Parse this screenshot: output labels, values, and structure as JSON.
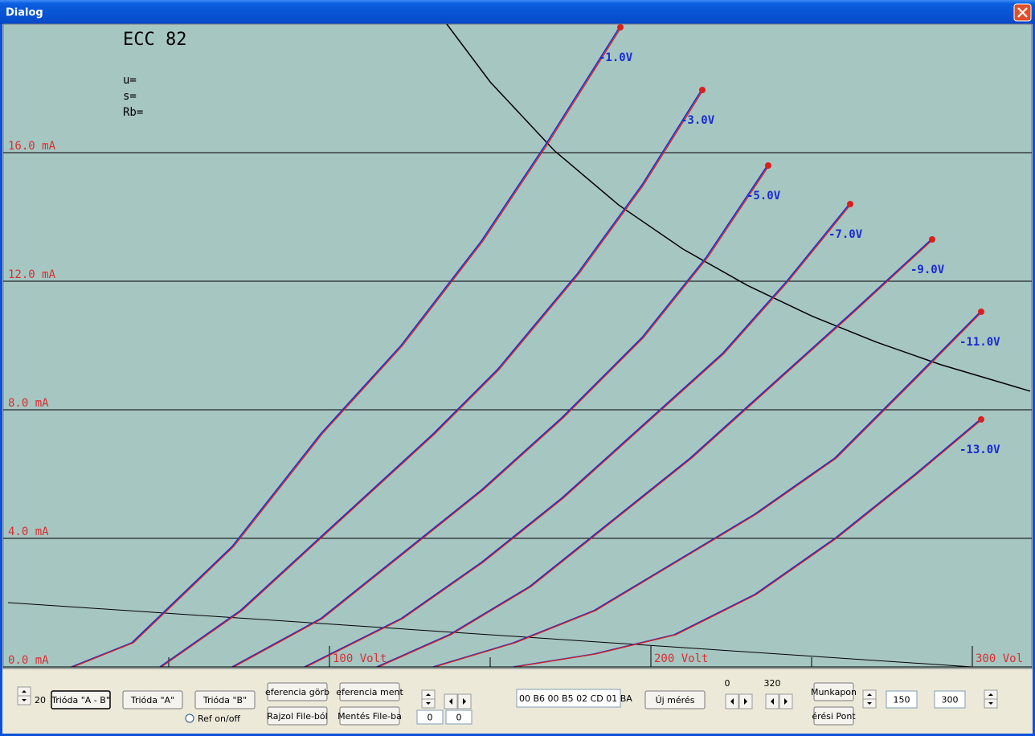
{
  "window": {
    "title": "Dialog"
  },
  "chart_data": {
    "type": "line",
    "title": "ECC 82",
    "annotations": [
      "u=",
      "s=",
      "Rb="
    ],
    "xlim": [
      0,
      318.25
    ],
    "ylim": [
      0,
      20
    ],
    "xticks": [
      {
        "value": 100,
        "label": "100 Volt"
      },
      {
        "value": 200,
        "label": "200 Volt"
      },
      {
        "value": 300,
        "label": "300 Vol"
      }
    ],
    "xminor_ticks": [
      50,
      150,
      250
    ],
    "yticks": [
      {
        "value": 0,
        "label": "0.0 mA"
      },
      {
        "value": 4,
        "label": "4.0 mA"
      },
      {
        "value": 8,
        "label": "8.0 mA"
      },
      {
        "value": 12,
        "label": "12.0 mA"
      },
      {
        "value": 16,
        "label": "16.0 mA"
      }
    ],
    "grid": true,
    "colors": {
      "measured": "#1f2fc8",
      "reference": "#d82020",
      "axis_label": "#d83030",
      "curve_label": "#1a2ad0",
      "power_curve": "#000000",
      "load_line": "#000000"
    },
    "series": [
      {
        "name": "-1.0V",
        "x": [
          20,
          38.75,
          70,
          97.5,
          122.5,
          147.5,
          167.5,
          190.5
        ],
        "values": [
          0,
          0.75,
          3.75,
          7.25,
          10,
          13.25,
          16.25,
          19.9
        ]
      },
      {
        "name": "-3.0V",
        "x": [
          47.5,
          72.5,
          102.5,
          132.5,
          152.5,
          177.5,
          197.5,
          216
        ],
        "values": [
          0,
          1.75,
          4.5,
          7.25,
          9.25,
          12.25,
          15,
          17.95
        ]
      },
      {
        "name": "-5.0V",
        "x": [
          70,
          97.5,
          122.5,
          147.5,
          172.5,
          197.5,
          217.5,
          236.5
        ],
        "values": [
          0,
          1.5,
          3.5,
          5.5,
          7.75,
          10.25,
          12.75,
          15.6
        ]
      },
      {
        "name": "-7.0V",
        "x": [
          92.5,
          122.5,
          147.5,
          172.5,
          197.5,
          222.5,
          242.5,
          262
        ],
        "values": [
          0,
          1.5,
          3.25,
          5.25,
          7.5,
          9.75,
          12,
          14.4
        ]
      },
      {
        "name": "-9.0V",
        "x": [
          115,
          137.5,
          162.5,
          187.5,
          212.5,
          237.5,
          262.5,
          287.5
        ],
        "values": [
          0,
          1,
          2.5,
          4.5,
          6.5,
          8.75,
          11,
          13.3
        ]
      },
      {
        "name": "-11.0V",
        "x": [
          132.5,
          157.5,
          182.5,
          207.5,
          232.5,
          257.5,
          282.5,
          302.75
        ],
        "values": [
          0,
          0.75,
          1.75,
          3.25,
          4.75,
          6.5,
          9,
          11.05
        ]
      },
      {
        "name": "-13.0V",
        "x": [
          157.5,
          182.5,
          207.5,
          232.5,
          257.5,
          282.5,
          302.75
        ],
        "values": [
          0,
          0.4,
          1,
          2.25,
          4,
          6,
          7.7
        ]
      }
    ],
    "power_curve": {
      "x": [
        136.5,
        150,
        170,
        190,
        210,
        230,
        250,
        270,
        290,
        318
      ],
      "values": [
        20,
        18.2,
        16.06,
        14.37,
        13,
        11.87,
        10.92,
        10.11,
        9.41,
        8.58
      ]
    },
    "load_line": {
      "x": [
        0,
        300
      ],
      "values": [
        2,
        0
      ]
    }
  },
  "controls": {
    "spin_value": "20",
    "button_ab": "Trióda \"A - B\"",
    "button_a": "Trióda  \"A\"",
    "button_b": "Trióda  \"B\"",
    "radio_ref": "Ref on/off",
    "ref_curve": "eferencia görb",
    "draw_file": "Rajzol File-ból",
    "ref_save": "eferencia ment",
    "save_file": "Mentés File-ba",
    "offset_a": "0",
    "offset_b": "0",
    "hex": "00 B6 00 B5 02 CD 01 BA",
    "new_measure": "Új mérés",
    "range_min": "0",
    "range_max": "320",
    "work_point": "Munkapon",
    "measure_point": "érési Pont",
    "field_150": "150",
    "field_300": "300"
  }
}
